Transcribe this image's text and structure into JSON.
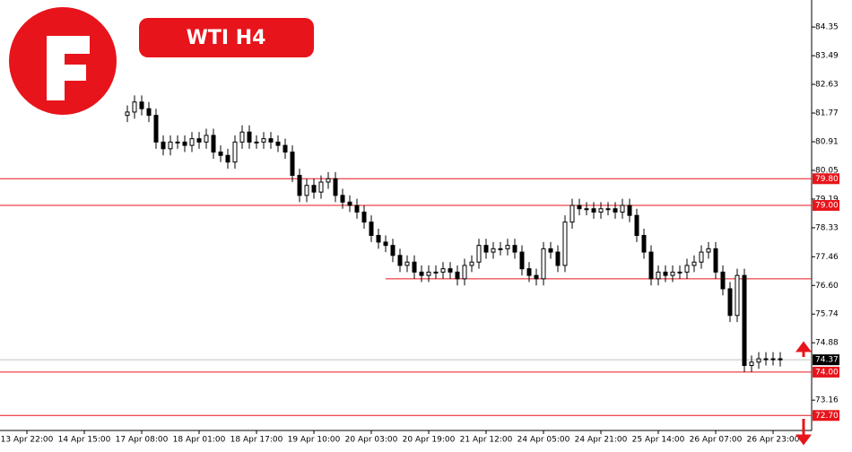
{
  "header": {
    "title": "WTI H4"
  },
  "chart_data": {
    "type": "candlestick",
    "categories": [
      "13 Apr 22:00",
      null,
      null,
      null,
      null,
      null,
      null,
      null,
      "14 Apr 15:00",
      null,
      null,
      null,
      null,
      null,
      null,
      null,
      "17 Apr 08:00",
      null,
      null,
      null,
      null,
      null,
      null,
      null,
      "18 Apr 01:00",
      null,
      null,
      null,
      null,
      null,
      null,
      null,
      "18 Apr 17:00",
      null,
      null,
      null,
      null,
      null,
      null,
      null,
      "19 Apr 10:00",
      null,
      null,
      null,
      null,
      null,
      null,
      null,
      "20 Apr 03:00",
      null,
      null,
      null,
      null,
      null,
      null,
      null,
      "20 Apr 19:00",
      null,
      null,
      null,
      null,
      null,
      null,
      null,
      "21 Apr 12:00",
      null,
      null,
      null,
      null,
      null,
      null,
      null,
      "24 Apr 05:00",
      null,
      null,
      null,
      null,
      null,
      null,
      null,
      "24 Apr 21:00",
      null,
      null,
      null,
      null,
      null,
      null,
      null,
      "25 Apr 14:00",
      null,
      null,
      null,
      null,
      null,
      null,
      null,
      "26 Apr 07:00",
      null,
      null,
      null,
      null,
      null,
      null,
      null,
      "26 Apr 23:00",
      null
    ],
    "open": [
      null,
      null,
      null,
      null,
      null,
      null,
      null,
      null,
      null,
      null,
      null,
      null,
      null,
      null,
      81.7,
      81.8,
      82.1,
      81.9,
      81.7,
      80.9,
      80.7,
      80.9,
      80.9,
      80.8,
      81.0,
      80.9,
      81.1,
      80.6,
      80.5,
      80.3,
      80.9,
      81.2,
      80.9,
      80.9,
      81.0,
      80.9,
      80.8,
      80.6,
      79.9,
      79.3,
      79.6,
      79.4,
      79.7,
      79.8,
      79.3,
      79.1,
      79.0,
      78.8,
      78.5,
      78.1,
      77.9,
      77.8,
      77.5,
      77.2,
      77.3,
      77.0,
      76.9,
      77.0,
      77.0,
      77.1,
      77.0,
      76.8,
      77.2,
      77.3,
      77.8,
      77.6,
      77.7,
      77.7,
      77.8,
      77.6,
      77.1,
      76.9,
      76.8,
      77.7,
      77.6,
      77.2,
      78.5,
      79.0,
      78.9,
      78.9,
      78.8,
      78.9,
      78.9,
      78.8,
      79.0,
      78.7,
      78.1,
      77.6,
      76.8,
      77.0,
      76.9,
      77.0,
      77.0,
      77.2,
      77.3,
      77.6,
      77.7,
      77.0,
      76.5,
      75.7,
      76.9,
      74.2,
      74.3,
      74.4,
      74.4,
      74.4
    ],
    "high": [
      null,
      null,
      null,
      null,
      null,
      null,
      null,
      null,
      null,
      null,
      null,
      null,
      null,
      null,
      82.0,
      82.3,
      82.3,
      82.1,
      81.9,
      81.1,
      81.1,
      81.1,
      81.1,
      81.2,
      81.2,
      81.3,
      81.3,
      80.8,
      80.7,
      81.1,
      81.4,
      81.4,
      81.1,
      81.2,
      81.2,
      81.1,
      81.0,
      80.8,
      80.1,
      79.8,
      79.8,
      79.9,
      80.0,
      80.0,
      79.5,
      79.3,
      79.2,
      79.0,
      78.7,
      78.3,
      78.1,
      78.0,
      77.7,
      77.5,
      77.5,
      77.2,
      77.2,
      77.2,
      77.3,
      77.3,
      77.2,
      77.4,
      77.5,
      78.0,
      78.0,
      77.9,
      77.9,
      78.0,
      78.0,
      77.8,
      77.3,
      77.1,
      77.9,
      77.9,
      77.8,
      78.7,
      79.2,
      79.2,
      79.1,
      79.1,
      79.1,
      79.1,
      79.1,
      79.2,
      79.2,
      78.9,
      78.3,
      77.8,
      77.2,
      77.2,
      77.2,
      77.2,
      77.4,
      77.5,
      77.8,
      77.9,
      77.9,
      77.2,
      76.7,
      77.1,
      77.1,
      74.5,
      74.6,
      74.6,
      74.6,
      74.6
    ],
    "low": [
      null,
      null,
      null,
      null,
      null,
      null,
      null,
      null,
      null,
      null,
      null,
      null,
      null,
      null,
      81.5,
      81.6,
      81.7,
      81.5,
      80.7,
      80.5,
      80.5,
      80.7,
      80.6,
      80.6,
      80.7,
      80.7,
      80.4,
      80.3,
      80.1,
      80.1,
      80.7,
      80.7,
      80.7,
      80.7,
      80.7,
      80.6,
      80.4,
      79.7,
      79.1,
      79.1,
      79.2,
      79.2,
      79.5,
      79.1,
      78.9,
      78.8,
      78.6,
      78.3,
      77.9,
      77.7,
      77.6,
      77.3,
      77.0,
      77.0,
      76.8,
      76.7,
      76.7,
      76.8,
      76.8,
      76.8,
      76.6,
      76.6,
      77.0,
      77.1,
      77.4,
      77.4,
      77.5,
      77.5,
      77.4,
      76.9,
      76.7,
      76.6,
      76.6,
      77.4,
      77.0,
      77.0,
      78.3,
      78.7,
      78.7,
      78.6,
      78.6,
      78.7,
      78.6,
      78.6,
      78.5,
      77.9,
      77.4,
      76.6,
      76.6,
      76.7,
      76.7,
      76.8,
      76.8,
      77.0,
      77.1,
      77.4,
      76.8,
      76.3,
      75.5,
      75.5,
      74.0,
      74.0,
      74.1,
      74.2,
      74.2,
      74.17
    ],
    "close": [
      null,
      null,
      null,
      null,
      null,
      null,
      null,
      null,
      null,
      null,
      null,
      null,
      null,
      null,
      81.8,
      82.1,
      81.9,
      81.7,
      80.9,
      80.7,
      80.9,
      80.9,
      80.8,
      81.0,
      80.9,
      81.1,
      80.6,
      80.5,
      80.3,
      80.9,
      81.2,
      80.9,
      80.9,
      81.0,
      80.9,
      80.8,
      80.6,
      79.9,
      79.3,
      79.6,
      79.4,
      79.7,
      79.8,
      79.3,
      79.1,
      79.0,
      78.8,
      78.5,
      78.1,
      77.9,
      77.8,
      77.5,
      77.2,
      77.3,
      77.0,
      76.9,
      77.0,
      77.0,
      77.1,
      77.0,
      76.8,
      77.2,
      77.3,
      77.8,
      77.6,
      77.7,
      77.7,
      77.8,
      77.6,
      77.1,
      76.9,
      76.8,
      77.7,
      77.6,
      77.2,
      78.5,
      79.0,
      78.9,
      78.9,
      78.8,
      78.9,
      78.9,
      78.8,
      79.0,
      78.7,
      78.1,
      77.6,
      76.8,
      77.0,
      76.9,
      77.0,
      77.0,
      77.2,
      77.3,
      77.6,
      77.7,
      77.0,
      76.5,
      75.7,
      76.9,
      74.2,
      74.3,
      74.4,
      74.4,
      74.4,
      74.37
    ],
    "ylim": [
      72.25,
      85.16
    ],
    "yticks": [
      84.35,
      83.49,
      82.63,
      81.77,
      80.91,
      80.05,
      79.19,
      78.33,
      77.46,
      {
        "value": 76.6,
        "label": "76.60"
      },
      75.74,
      74.88,
      73.16
    ],
    "levels": [
      {
        "value": 79.8,
        "label": "79.80"
      },
      {
        "value": 79.0,
        "label": "79.00"
      },
      {
        "value": 74.0,
        "label": "74.00"
      },
      {
        "value": 72.7,
        "label": "72.70"
      }
    ],
    "support_line": 76.8,
    "current_price": 74.37,
    "level_color": "#e8141b",
    "candle_color": "#000000"
  }
}
